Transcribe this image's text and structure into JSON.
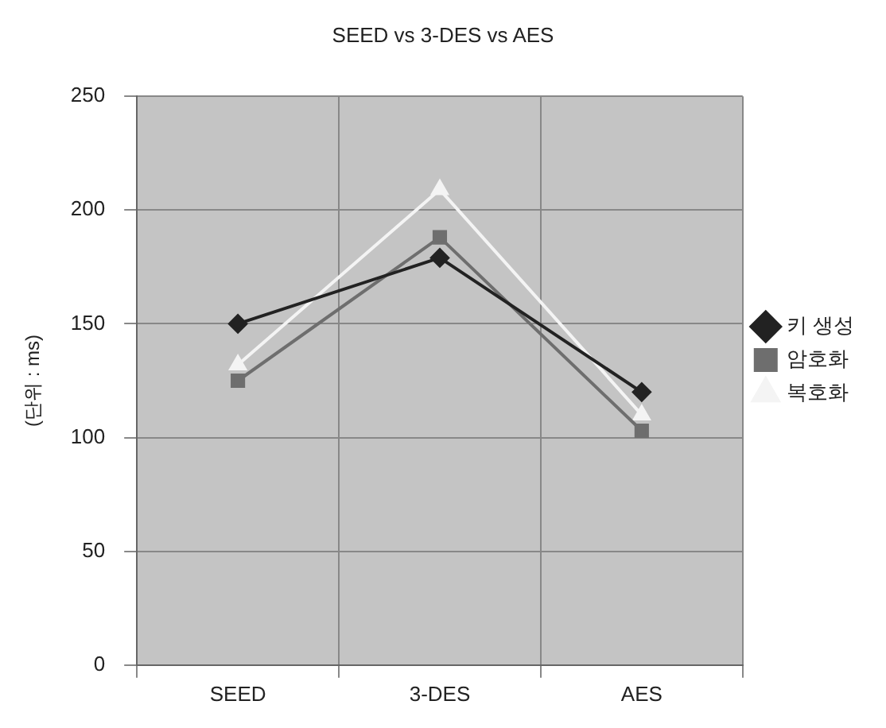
{
  "chart_data": {
    "type": "line",
    "title": "SEED vs 3-DES vs AES",
    "ylabel": "(단위 : ms)",
    "categories": [
      "SEED",
      "3-DES",
      "AES"
    ],
    "series": [
      {
        "name": "키 생성",
        "color": "#222222",
        "marker": "diamond",
        "values": [
          150,
          179,
          120
        ]
      },
      {
        "name": "암호화",
        "color": "#6e6e6e",
        "marker": "square",
        "values": [
          125,
          188,
          103
        ]
      },
      {
        "name": "복호화",
        "color": "#f4f4f4",
        "marker": "triangle",
        "values": [
          132,
          209,
          110
        ]
      }
    ],
    "ylim": [
      0,
      250
    ],
    "yticks": [
      0,
      50,
      100,
      150,
      200,
      250
    ],
    "grid": true,
    "legend": "right",
    "line_style": "solid"
  }
}
